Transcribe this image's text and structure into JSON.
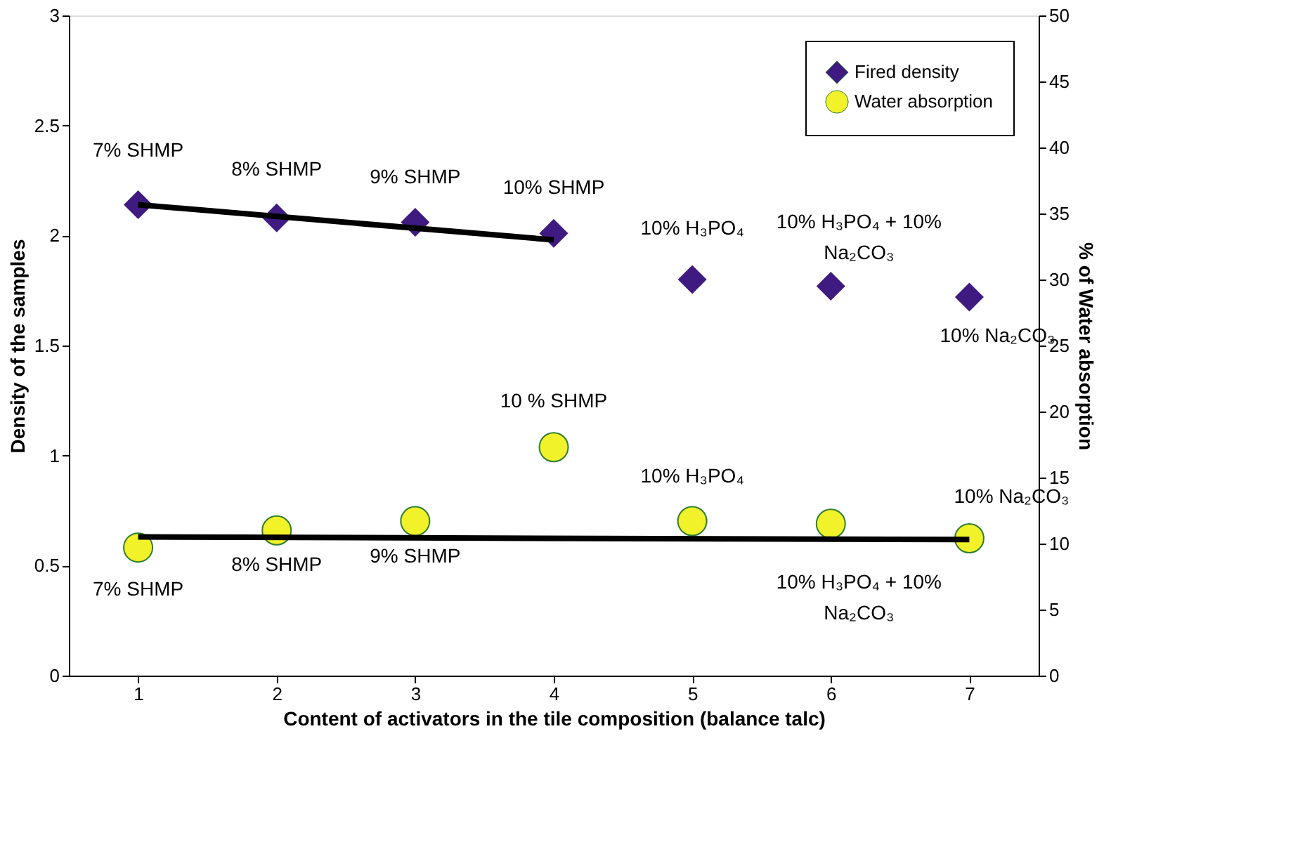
{
  "chart_data": {
    "type": "scatter",
    "xlabel": "Content of activators in the tile composition (balance talc)",
    "ylabel": "Density of the samples",
    "y2label": "% of Water absorption",
    "xlim": [
      0.5,
      7.5
    ],
    "xticks": [
      1,
      2,
      3,
      4,
      5,
      6,
      7
    ],
    "ylim": [
      0,
      3
    ],
    "yticks": [
      0,
      0.5,
      1,
      1.5,
      2,
      2.5,
      3
    ],
    "y2lim": [
      0,
      50
    ],
    "y2ticks": [
      0,
      5,
      10,
      15,
      20,
      25,
      30,
      35,
      40,
      45,
      50
    ],
    "grid": false,
    "legend": "top right",
    "series": [
      {
        "name": "Fired density",
        "type": "scatter",
        "marker": "diamond",
        "color": "#3f1a80",
        "x": [
          1,
          2,
          3,
          4,
          5,
          6,
          7
        ],
        "values": [
          2.14,
          2.08,
          2.06,
          2.01,
          1.8,
          1.77,
          1.72
        ]
      },
      {
        "name": "Water absorption",
        "type": "scatter",
        "marker": "circle",
        "axis": "y2",
        "color": "#f2f22a",
        "x": [
          1,
          2,
          3,
          4,
          5,
          6,
          7
        ],
        "values": [
          9.7,
          11.0,
          11.7,
          17.3,
          11.7,
          11.5,
          10.4
        ]
      },
      {
        "type": "line",
        "color": "#000000",
        "x": [
          1,
          4
        ],
        "values": [
          2.14,
          1.98
        ]
      },
      {
        "type": "line",
        "color": "#000000",
        "axis": "y2",
        "x": [
          1,
          7
        ],
        "values": [
          10.5,
          10.3
        ]
      }
    ],
    "annotations": [
      {
        "text": "7% SHMP",
        "x": 1,
        "y": 2.14
      },
      {
        "text": "8% SHMP",
        "x": 2,
        "y": 2.08
      },
      {
        "text": "9% SHMP",
        "x": 3,
        "y": 2.06
      },
      {
        "text": "10% SHMP",
        "x": 4,
        "y": 2.01
      },
      {
        "text": "10% H₃PO₄",
        "x": 5,
        "y": 1.8
      },
      {
        "text": "10% H₃PO₄ + 10%\nNa₂CO₃",
        "x": 6,
        "y": 1.77
      },
      {
        "text": "10% Na₂CO₃",
        "x": 7,
        "y": 1.72
      },
      {
        "text": "7% SHMP",
        "x": 1,
        "y": 0.58
      },
      {
        "text": "8% SHMP",
        "x": 2,
        "y": 0.66
      },
      {
        "text": "9% SHMP",
        "x": 3,
        "y": 0.7
      },
      {
        "text": "10 % SHMP",
        "x": 4,
        "y": 1.04
      },
      {
        "text": "10% H₃PO₄",
        "x": 5,
        "y": 0.7
      },
      {
        "text": "10% H₃PO₄ + 10%\nNa₂CO₃",
        "x": 6,
        "y": 0.69
      },
      {
        "text": "10% Na₂CO₃",
        "x": 7,
        "y": 0.62
      }
    ]
  }
}
